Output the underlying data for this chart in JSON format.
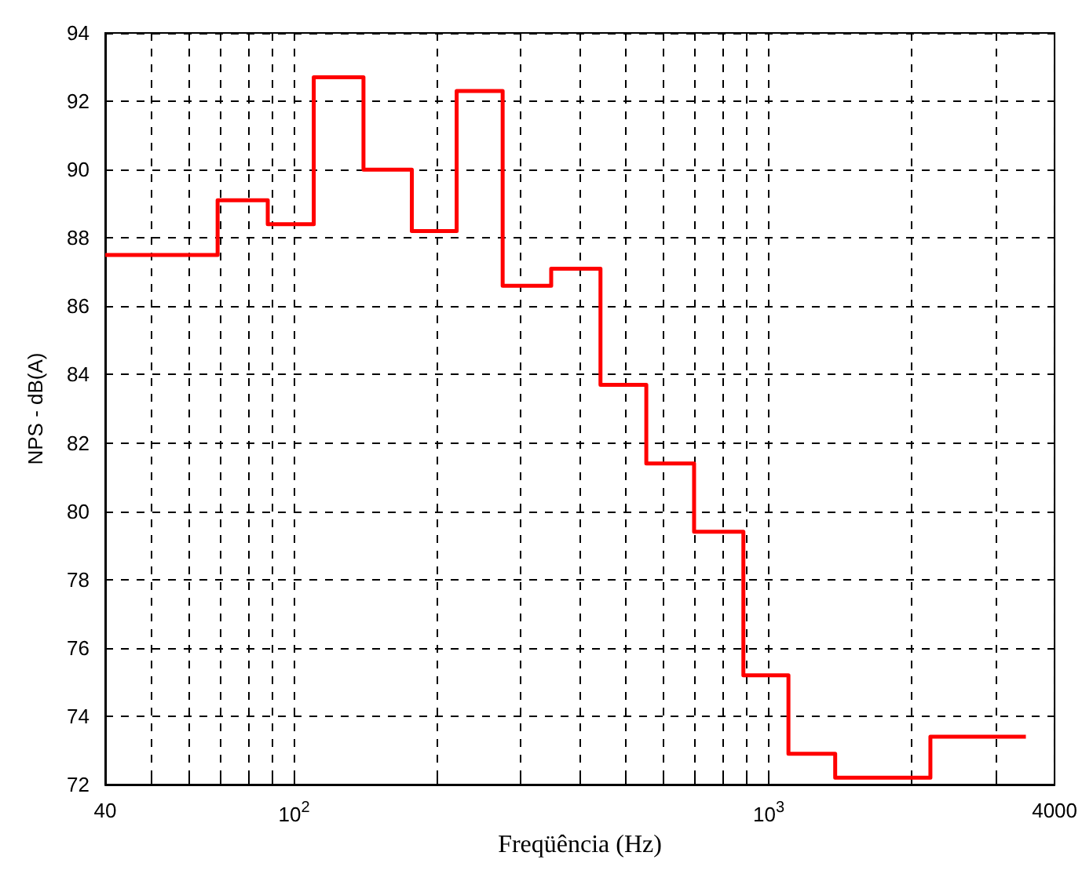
{
  "chart_data": {
    "type": "step",
    "xlabel": "Freqüência (Hz)",
    "ylabel": "NPS - dB(A)",
    "x": [
      40,
      69,
      88,
      110,
      140,
      177,
      220,
      275,
      348,
      442,
      552,
      696,
      884,
      1100,
      1380,
      2190,
      3480
    ],
    "series": [
      {
        "color": "#ff0000",
        "values": [
          87.5,
          89.1,
          88.4,
          92.7,
          90.0,
          88.2,
          92.3,
          86.6,
          87.1,
          83.7,
          81.4,
          79.4,
          75.2,
          72.9,
          72.2,
          73.4,
          73.4
        ]
      }
    ],
    "log": "x",
    "xlim": [
      40,
      4000
    ],
    "xticks": [
      40,
      {
        "value": 50,
        "label": null
      },
      {
        "value": 60,
        "label": null
      },
      {
        "value": 70,
        "label": null
      },
      {
        "value": 80,
        "label": null
      },
      {
        "value": 90,
        "label": null
      },
      {
        "value": 100,
        "label": "10$^{2}$"
      },
      {
        "value": 200,
        "label": null
      },
      {
        "value": 300,
        "label": null
      },
      {
        "value": 400,
        "label": null
      },
      {
        "value": 500,
        "label": null
      },
      {
        "value": 600,
        "label": null
      },
      {
        "value": 700,
        "label": null
      },
      {
        "value": 800,
        "label": null
      },
      {
        "value": 900,
        "label": null
      },
      {
        "value": 1000,
        "label": "10$^{3}$"
      },
      {
        "value": 2000,
        "label": null
      },
      {
        "value": 3000,
        "label": null
      },
      4000
    ],
    "ylim": [
      72,
      94
    ],
    "yticks": [
      72,
      74,
      76,
      78,
      80,
      82,
      84,
      86,
      88,
      90,
      92,
      94
    ],
    "grid": true,
    "marker": "none",
    "line_style": "solid"
  }
}
